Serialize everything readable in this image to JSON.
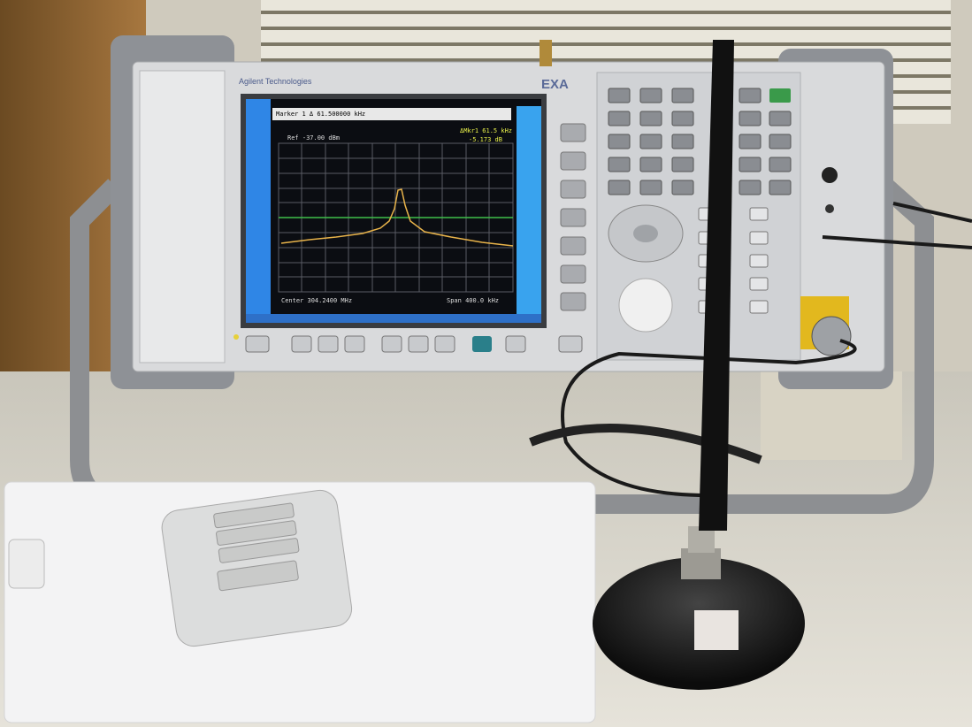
{
  "instrument": {
    "brand": "Agilent Technologies",
    "model": "EXA"
  },
  "screen": {
    "marker": "Marker 1 Δ 61.500000 kHz",
    "ref": "Ref -37.00 dBm",
    "delta_marker": "ΔMkr1 61.5 kHz",
    "delta_value": "-5.173 dB",
    "center": "Center 304.2400 MHz",
    "span": "Span 400.0 kHz"
  }
}
